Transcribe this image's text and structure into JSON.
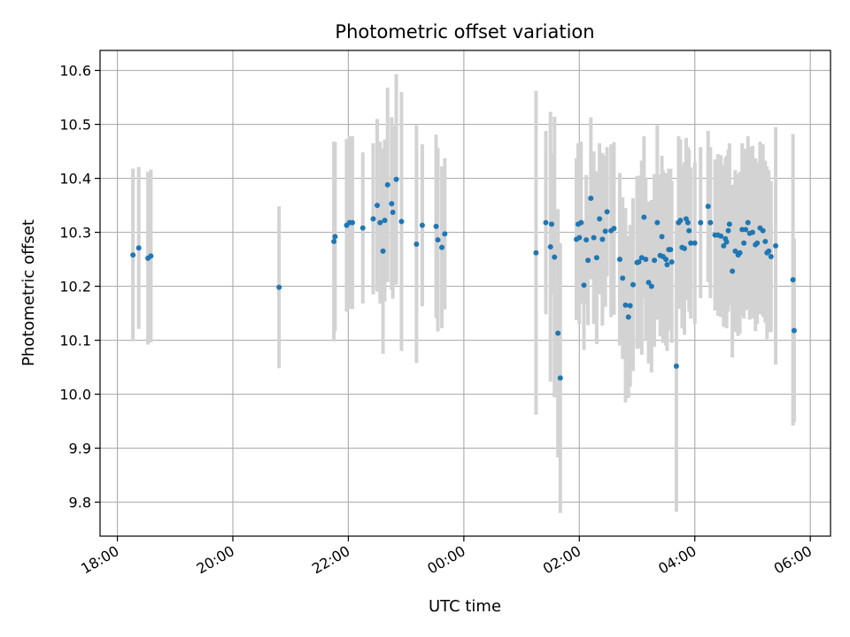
{
  "chart_data": {
    "type": "scatter",
    "title": "Photometric offset variation",
    "xlabel": "UTC time",
    "ylabel": "Photometric offset",
    "x_unit": "hours since 18:00 UTC",
    "xlim": [
      -0.3,
      12.35
    ],
    "ylim": [
      9.737,
      10.637
    ],
    "grid": true,
    "x_ticks": [
      {
        "value": 0,
        "label": "18:00"
      },
      {
        "value": 2,
        "label": "20:00"
      },
      {
        "value": 4,
        "label": "22:00"
      },
      {
        "value": 6,
        "label": "00:00"
      },
      {
        "value": 8,
        "label": "02:00"
      },
      {
        "value": 10,
        "label": "04:00"
      },
      {
        "value": 12,
        "label": "06:00"
      }
    ],
    "y_ticks": [
      {
        "value": 9.8,
        "label": "9.8"
      },
      {
        "value": 9.9,
        "label": "9.9"
      },
      {
        "value": 10.0,
        "label": "10.0"
      },
      {
        "value": 10.1,
        "label": "10.1"
      },
      {
        "value": 10.2,
        "label": "10.2"
      },
      {
        "value": 10.3,
        "label": "10.3"
      },
      {
        "value": 10.4,
        "label": "10.4"
      },
      {
        "value": 10.5,
        "label": "10.5"
      },
      {
        "value": 10.6,
        "label": "10.6"
      }
    ],
    "colors": {
      "marker": "#1f77b4",
      "errorbar": "#d3d3d3",
      "grid": "#b0b0b0"
    },
    "series": [
      {
        "name": "offset",
        "points": [
          [
            0.27,
            10.258,
            0.16
          ],
          [
            0.37,
            10.271,
            0.15
          ],
          [
            0.53,
            10.252,
            0.16
          ],
          [
            0.58,
            10.256,
            0.16
          ],
          [
            2.8,
            10.198,
            0.15
          ],
          [
            3.75,
            10.283,
            0.185
          ],
          [
            3.77,
            10.292,
            0.175
          ],
          [
            3.97,
            10.313,
            0.16
          ],
          [
            4.02,
            10.318,
            0.16
          ],
          [
            4.07,
            10.318,
            0.16
          ],
          [
            4.25,
            10.308,
            0.14
          ],
          [
            4.43,
            10.325,
            0.14
          ],
          [
            4.5,
            10.35,
            0.16
          ],
          [
            4.55,
            10.318,
            0.15
          ],
          [
            4.6,
            10.265,
            0.19
          ],
          [
            4.63,
            10.322,
            0.15
          ],
          [
            4.68,
            10.388,
            0.18
          ],
          [
            4.75,
            10.353,
            0.16
          ],
          [
            4.77,
            10.337,
            0.16
          ],
          [
            4.83,
            10.398,
            0.195
          ],
          [
            4.92,
            10.32,
            0.24
          ],
          [
            5.18,
            10.278,
            0.22
          ],
          [
            5.28,
            10.313,
            0.15
          ],
          [
            5.52,
            10.311,
            0.17
          ],
          [
            5.55,
            10.286,
            0.17
          ],
          [
            5.62,
            10.272,
            0.15
          ],
          [
            5.67,
            10.297,
            0.14
          ],
          [
            7.25,
            10.262,
            0.3
          ],
          [
            7.42,
            10.318,
            0.17
          ],
          [
            7.5,
            10.273,
            0.25
          ],
          [
            7.52,
            10.315,
            0.13
          ],
          [
            7.57,
            10.254,
            0.26
          ],
          [
            7.63,
            10.113,
            0.23
          ],
          [
            7.67,
            10.03,
            0.25
          ],
          [
            7.95,
            10.287,
            0.15
          ],
          [
            7.98,
            10.315,
            0.15
          ],
          [
            8.0,
            10.29,
            0.16
          ],
          [
            8.03,
            10.318,
            0.15
          ],
          [
            8.08,
            10.202,
            0.12
          ],
          [
            8.12,
            10.286,
            0.12
          ],
          [
            8.15,
            10.248,
            0.12
          ],
          [
            8.2,
            10.363,
            0.15
          ],
          [
            8.25,
            10.29,
            0.16
          ],
          [
            8.3,
            10.253,
            0.16
          ],
          [
            8.35,
            10.325,
            0.14
          ],
          [
            8.4,
            10.287,
            0.16
          ],
          [
            8.45,
            10.302,
            0.14
          ],
          [
            8.48,
            10.338,
            0.12
          ],
          [
            8.55,
            10.303,
            0.16
          ],
          [
            8.6,
            10.307,
            0.16
          ],
          [
            8.7,
            10.25,
            0.16
          ],
          [
            8.75,
            10.215,
            0.15
          ],
          [
            8.8,
            10.165,
            0.18
          ],
          [
            8.85,
            10.143,
            0.15
          ],
          [
            8.88,
            10.164,
            0.15
          ],
          [
            8.93,
            10.203,
            0.16
          ],
          [
            9.0,
            10.244,
            0.16
          ],
          [
            9.03,
            10.245,
            0.16
          ],
          [
            9.08,
            10.253,
            0.18
          ],
          [
            9.12,
            10.328,
            0.15
          ],
          [
            9.15,
            10.25,
            0.15
          ],
          [
            9.2,
            10.207,
            0.15
          ],
          [
            9.25,
            10.2,
            0.16
          ],
          [
            9.3,
            10.248,
            0.16
          ],
          [
            9.35,
            10.318,
            0.18
          ],
          [
            9.4,
            10.257,
            0.15
          ],
          [
            9.43,
            10.292,
            0.15
          ],
          [
            9.45,
            10.255,
            0.16
          ],
          [
            9.5,
            10.25,
            0.16
          ],
          [
            9.52,
            10.24,
            0.16
          ],
          [
            9.55,
            10.268,
            0.15
          ],
          [
            9.58,
            10.268,
            0.15
          ],
          [
            9.6,
            10.245,
            0.15
          ],
          [
            9.68,
            10.052,
            0.27
          ],
          [
            9.72,
            10.318,
            0.16
          ],
          [
            9.75,
            10.322,
            0.15
          ],
          [
            9.78,
            10.272,
            0.15
          ],
          [
            9.82,
            10.27,
            0.16
          ],
          [
            9.85,
            10.325,
            0.15
          ],
          [
            9.88,
            10.318,
            0.14
          ],
          [
            9.9,
            10.303,
            0.15
          ],
          [
            9.93,
            10.28,
            0.14
          ],
          [
            10.0,
            10.28,
            0.15
          ],
          [
            10.1,
            10.318,
            0.14
          ],
          [
            10.23,
            10.348,
            0.14
          ],
          [
            10.27,
            10.318,
            0.14
          ],
          [
            10.35,
            10.295,
            0.14
          ],
          [
            10.4,
            10.295,
            0.15
          ],
          [
            10.45,
            10.293,
            0.15
          ],
          [
            10.5,
            10.275,
            0.15
          ],
          [
            10.53,
            10.288,
            0.15
          ],
          [
            10.55,
            10.282,
            0.16
          ],
          [
            10.58,
            10.303,
            0.15
          ],
          [
            10.6,
            10.315,
            0.15
          ],
          [
            10.65,
            10.228,
            0.16
          ],
          [
            10.7,
            10.265,
            0.15
          ],
          [
            10.75,
            10.258,
            0.15
          ],
          [
            10.78,
            10.262,
            0.15
          ],
          [
            10.82,
            10.305,
            0.16
          ],
          [
            10.85,
            10.28,
            0.14
          ],
          [
            10.88,
            10.305,
            0.15
          ],
          [
            10.92,
            10.318,
            0.16
          ],
          [
            10.95,
            10.298,
            0.16
          ],
          [
            11.0,
            10.3,
            0.16
          ],
          [
            11.05,
            10.277,
            0.16
          ],
          [
            11.08,
            10.28,
            0.15
          ],
          [
            11.13,
            10.308,
            0.16
          ],
          [
            11.18,
            10.303,
            0.16
          ],
          [
            11.22,
            10.283,
            0.15
          ],
          [
            11.25,
            10.262,
            0.16
          ],
          [
            11.28,
            10.265,
            0.15
          ],
          [
            11.32,
            10.255,
            0.14
          ],
          [
            11.4,
            10.275,
            0.22
          ],
          [
            11.7,
            10.212,
            0.27
          ],
          [
            11.72,
            10.118,
            0.17
          ]
        ]
      }
    ]
  }
}
